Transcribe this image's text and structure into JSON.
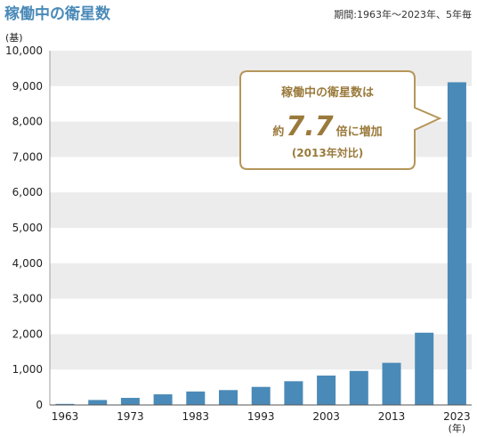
{
  "header": {
    "title": "稼働中の衛星数",
    "period_note": "期間:1963年〜2023年、5年毎"
  },
  "chart_data": {
    "type": "bar",
    "title": "稼働中の衛星数",
    "ylabel": "(基)",
    "xlabel": "(年)",
    "ylim": [
      0,
      10000
    ],
    "yticks": [
      "0",
      "1,000",
      "2,000",
      "3,000",
      "4,000",
      "5,000",
      "6,000",
      "7,000",
      "8,000",
      "9,000",
      "10,000"
    ],
    "categories": [
      "1963",
      "1968",
      "1973",
      "1978",
      "1983",
      "1988",
      "1993",
      "1998",
      "2003",
      "2008",
      "2013",
      "2018",
      "2023"
    ],
    "x_tick_labels": [
      "1963",
      "1973",
      "1983",
      "1993",
      "2003",
      "2013",
      "2023"
    ],
    "values": [
      30,
      140,
      200,
      300,
      380,
      420,
      510,
      670,
      830,
      960,
      1190,
      2040,
      9110
    ],
    "bar_color": "#4a8ab8",
    "grid": "horizontal-bands",
    "band_color": "#ececec"
  },
  "callout": {
    "line1": "稼働中の衛星数は",
    "prefix": "約",
    "multiplier": "7.7",
    "suffix": "倍に増加",
    "note": "(2013年対比)",
    "border_color": "#b5965a",
    "text_color": "#9a7a3c"
  }
}
